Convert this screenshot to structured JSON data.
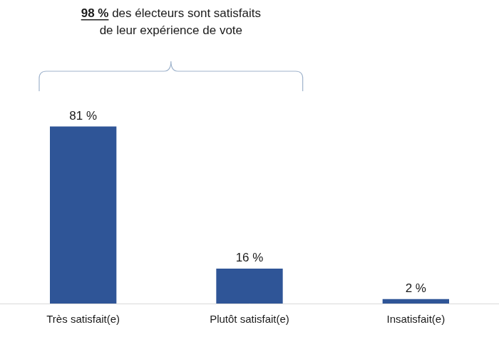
{
  "chart_data": {
    "type": "bar",
    "categories": [
      "Très satisfait(e)",
      "Plutôt satisfait(e)",
      "Insatisfait(e)"
    ],
    "values": [
      81,
      16,
      2
    ],
    "value_labels": [
      "81 %",
      "16 %",
      "2 %"
    ],
    "color": "#2f5597",
    "data_labels": true,
    "tick_labels": "x",
    "grid": false,
    "annotation": {
      "highlight": "98 %",
      "lines": [
        "des électeurs sont satisfaits",
        "de leur expérience de vote"
      ],
      "span": [
        "Très satisfait(e)",
        "Plutôt satisfait(e)"
      ]
    }
  }
}
